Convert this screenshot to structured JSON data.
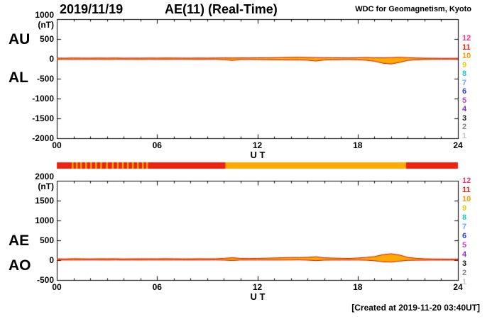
{
  "header": {
    "date": "2019/11/19",
    "title": "AE(11) (Real-Time)",
    "source": "WDC for Geomagnetism, Kyoto"
  },
  "footer": {
    "created_note": "[Created at 2019-11-20 03:40UT]"
  },
  "axes": {
    "x_label": "U T",
    "unit_label": "(nT)",
    "x_ticks": [
      "00",
      "06",
      "12",
      "18",
      "24"
    ],
    "top_y_ticks": [
      "1000",
      "500",
      "0",
      "-500",
      "-1000",
      "-1500",
      "-2000"
    ],
    "bottom_y_ticks": [
      "2000",
      "1500",
      "1000",
      "500",
      "0",
      "-500"
    ]
  },
  "left_labels": {
    "top_upper": "AU",
    "top_lower": "AL",
    "bottom_upper": "AE",
    "bottom_lower": "AO"
  },
  "stations": [
    {
      "label": "12",
      "color": "#ff3377"
    },
    {
      "label": "11",
      "color": "#ee2211"
    },
    {
      "label": "10",
      "color": "#ff9900"
    },
    {
      "label": "9",
      "color": "#eecc11"
    },
    {
      "label": "8",
      "color": "#22cccc"
    },
    {
      "label": "7",
      "color": "#66aaff"
    },
    {
      "label": "6",
      "color": "#3344ee"
    },
    {
      "label": "5",
      "color": "#cc44cc"
    },
    {
      "label": "4",
      "color": "#8833cc"
    },
    {
      "label": "3",
      "color": "#222222"
    },
    {
      "label": "2",
      "color": "#888888"
    },
    {
      "label": "1",
      "color": "#c8c8c8"
    }
  ],
  "colors": {
    "frame": "#000000",
    "fill": "#ffaa00",
    "line": "#cc1100",
    "bar_red": "#ee2211",
    "bar_orange": "#ffaa00"
  },
  "colorbar": {
    "segments": [
      {
        "start": 0,
        "end": 10.1,
        "hex": "#ee2211"
      },
      {
        "start": 10.1,
        "end": 20.9,
        "hex": "#ffaa00"
      },
      {
        "start": 20.9,
        "end": 24,
        "hex": "#ee2211"
      }
    ],
    "stripes": {
      "hex": "#ffaa00",
      "width_hours": 0.1,
      "times": [
        0.9,
        1.15,
        1.4,
        1.7,
        2.0,
        2.3,
        2.6,
        2.95,
        3.3,
        3.6,
        3.9,
        4.2,
        4.5,
        4.8,
        5.1,
        5.35
      ]
    }
  },
  "chart_data": [
    {
      "type": "area",
      "title": "AU / AL (upper panel)",
      "xlabel": "U T",
      "ylabel": "(nT)",
      "xlim": [
        0,
        24
      ],
      "ylim": [
        -2000,
        1000
      ],
      "x": [
        0,
        0.5,
        1,
        1.5,
        2,
        2.5,
        3,
        3.5,
        4,
        4.5,
        5,
        5.5,
        6,
        6.5,
        7,
        7.5,
        8,
        8.5,
        9,
        9.5,
        10,
        10.5,
        11,
        11.5,
        12,
        12.5,
        13,
        13.5,
        14,
        14.5,
        15,
        15.5,
        16,
        16.5,
        17,
        17.5,
        18,
        18.5,
        19,
        19.5,
        20,
        20.5,
        21,
        21.5,
        22,
        22.5,
        23,
        23.5,
        24
      ],
      "series": [
        {
          "name": "AU",
          "values": [
            20,
            18,
            22,
            20,
            19,
            21,
            20,
            22,
            18,
            20,
            19,
            21,
            20,
            22,
            21,
            20,
            19,
            21,
            20,
            22,
            24,
            22,
            25,
            24,
            26,
            28,
            30,
            34,
            38,
            40,
            36,
            32,
            30,
            28,
            26,
            24,
            30,
            34,
            30,
            28,
            32,
            40,
            30,
            22,
            18,
            16,
            15,
            14,
            15
          ]
        },
        {
          "name": "AL",
          "values": [
            -15,
            -14,
            -16,
            -15,
            -14,
            -15,
            -16,
            -15,
            -14,
            -15,
            -16,
            -15,
            -15,
            -16,
            -15,
            -14,
            -15,
            -16,
            -15,
            -14,
            -22,
            -40,
            -20,
            -18,
            -20,
            -22,
            -25,
            -28,
            -30,
            -28,
            -35,
            -55,
            -30,
            -25,
            -22,
            -20,
            -25,
            -35,
            -60,
            -110,
            -130,
            -90,
            -40,
            -25,
            -18,
            -15,
            -14,
            -13,
            -14
          ]
        }
      ]
    },
    {
      "type": "area",
      "title": "AE / AO (lower panel)",
      "xlabel": "U T",
      "ylabel": "(nT)",
      "xlim": [
        0,
        24
      ],
      "ylim": [
        -500,
        2000
      ],
      "x": [
        0,
        0.5,
        1,
        1.5,
        2,
        2.5,
        3,
        3.5,
        4,
        4.5,
        5,
        5.5,
        6,
        6.5,
        7,
        7.5,
        8,
        8.5,
        9,
        9.5,
        10,
        10.5,
        11,
        11.5,
        12,
        12.5,
        13,
        13.5,
        14,
        14.5,
        15,
        15.5,
        16,
        16.5,
        17,
        17.5,
        18,
        18.5,
        19,
        19.5,
        20,
        20.5,
        21,
        21.5,
        22,
        22.5,
        23,
        23.5,
        24
      ],
      "series": [
        {
          "name": "AE",
          "values": [
            35,
            32,
            38,
            35,
            33,
            36,
            36,
            37,
            32,
            35,
            35,
            36,
            35,
            38,
            36,
            34,
            34,
            37,
            35,
            36,
            46,
            62,
            45,
            42,
            46,
            50,
            55,
            62,
            68,
            68,
            71,
            87,
            60,
            53,
            48,
            44,
            55,
            69,
            90,
            138,
            162,
            130,
            70,
            47,
            36,
            31,
            29,
            27,
            29
          ]
        },
        {
          "name": "AO",
          "values": [
            3,
            2,
            3,
            3,
            3,
            3,
            2,
            4,
            2,
            3,
            2,
            3,
            3,
            3,
            3,
            3,
            2,
            3,
            3,
            4,
            1,
            -9,
            3,
            3,
            3,
            3,
            3,
            3,
            4,
            6,
            1,
            -12,
            0,
            2,
            2,
            2,
            3,
            -1,
            -15,
            -41,
            -49,
            -25,
            -5,
            -2,
            0,
            1,
            1,
            1,
            1
          ]
        }
      ]
    }
  ]
}
